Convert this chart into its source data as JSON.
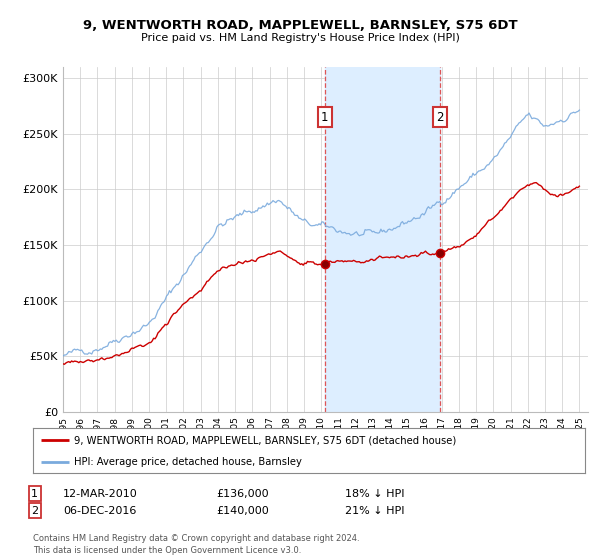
{
  "title": "9, WENTWORTH ROAD, MAPPLEWELL, BARNSLEY, S75 6DT",
  "subtitle": "Price paid vs. HM Land Registry's House Price Index (HPI)",
  "legend_label_red": "9, WENTWORTH ROAD, MAPPLEWELL, BARNSLEY, S75 6DT (detached house)",
  "legend_label_blue": "HPI: Average price, detached house, Barnsley",
  "footnote": "Contains HM Land Registry data © Crown copyright and database right 2024.\nThis data is licensed under the Open Government Licence v3.0.",
  "annotation1_label": "1",
  "annotation1_date": "12-MAR-2010",
  "annotation1_price": "£136,000",
  "annotation1_hpi": "18% ↓ HPI",
  "annotation2_label": "2",
  "annotation2_date": "06-DEC-2016",
  "annotation2_price": "£140,000",
  "annotation2_hpi": "21% ↓ HPI",
  "purchase1_year": 2010.2,
  "purchase2_year": 2016.92,
  "red_color": "#cc0000",
  "blue_color": "#7aaadd",
  "shade_color": "#ddeeff",
  "grid_color": "#cccccc",
  "background_color": "#ffffff",
  "box_edge_color": "#cc3333",
  "ylim": [
    0,
    310000
  ],
  "xlim_start": 1995,
  "xlim_end": 2025.5
}
